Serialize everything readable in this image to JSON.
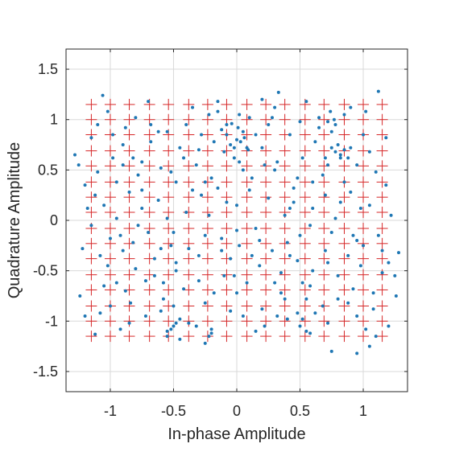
{
  "chart_data": {
    "type": "scatter",
    "title": "",
    "xlabel": "In-phase Amplitude",
    "ylabel": "Quadrature Amplitude",
    "xlim": [
      -1.35,
      1.35
    ],
    "ylim": [
      -1.7,
      1.7
    ],
    "grid": true,
    "x_ticks": [
      -1,
      -0.5,
      0,
      0.5,
      1
    ],
    "x_tick_labels": [
      "-1",
      "-0.5",
      "0",
      "0.5",
      "1"
    ],
    "y_ticks": [
      -1.5,
      -1,
      -0.5,
      0,
      0.5,
      1,
      1.5
    ],
    "y_tick_labels": [
      "-1.5",
      "-1",
      "-0.5",
      "0",
      "0.5",
      "1",
      "1.5"
    ],
    "reference_constellation": {
      "marker": "plus",
      "color": "#d62728",
      "levels": [
        -1.15,
        -1.0,
        -0.85,
        -0.69,
        -0.54,
        -0.38,
        -0.23,
        -0.08,
        0.08,
        0.23,
        0.38,
        0.54,
        0.69,
        0.85,
        1.0,
        1.15
      ]
    },
    "received_points": {
      "marker": "dot",
      "color": "#1f77b4",
      "points": [
        [
          -1.28,
          0.65
        ],
        [
          -1.25,
          0.55
        ],
        [
          -1.2,
          0.35
        ],
        [
          -1.22,
          -0.28
        ],
        [
          -1.24,
          -0.75
        ],
        [
          -1.18,
          0.12
        ],
        [
          -1.15,
          -0.05
        ],
        [
          -1.1,
          0.95
        ],
        [
          -1.06,
          1.24
        ],
        [
          -1.05,
          0.15
        ],
        [
          -1.02,
          -0.45
        ],
        [
          -1.12,
          -1.13
        ],
        [
          -1.08,
          -0.92
        ],
        [
          -0.98,
          0.62
        ],
        [
          -0.95,
          0.02
        ],
        [
          -0.9,
          -0.3
        ],
        [
          -0.95,
          -0.62
        ],
        [
          -0.92,
          -1.08
        ],
        [
          -0.88,
          0.92
        ],
        [
          -0.85,
          0.28
        ],
        [
          -0.82,
          -0.22
        ],
        [
          -0.8,
          -0.48
        ],
        [
          -0.84,
          -0.82
        ],
        [
          -0.78,
          0.45
        ],
        [
          -0.75,
          0.12
        ],
        [
          -0.72,
          -0.95
        ],
        [
          -0.7,
          1.18
        ],
        [
          -0.68,
          0.78
        ],
        [
          -0.65,
          -0.55
        ],
        [
          -0.62,
          0.2
        ],
        [
          -0.6,
          -0.28
        ],
        [
          -0.58,
          -0.78
        ],
        [
          -0.55,
          -1.1
        ],
        [
          -0.55,
          0.88
        ],
        [
          -0.52,
          0.48
        ],
        [
          -0.5,
          -0.12
        ],
        [
          -0.48,
          -0.42
        ],
        [
          -0.45,
          0.72
        ],
        [
          -0.42,
          -0.68
        ],
        [
          -0.4,
          0.08
        ],
        [
          -0.38,
          -1.02
        ],
        [
          -0.35,
          1.12
        ],
        [
          -0.32,
          0.55
        ],
        [
          -0.3,
          -0.35
        ],
        [
          -0.28,
          0.25
        ],
        [
          -0.25,
          -0.82
        ],
        [
          -0.22,
          1.05
        ],
        [
          -0.2,
          -1.08
        ],
        [
          -0.18,
          0.78
        ],
        [
          -0.15,
          0.32
        ],
        [
          -0.12,
          -0.18
        ],
        [
          -0.1,
          -0.55
        ],
        [
          -0.08,
          0.95
        ],
        [
          -0.05,
          -0.9
        ],
        [
          -0.02,
          0.62
        ],
        [
          0.0,
          0.15
        ],
        [
          0.02,
          -0.25
        ],
        [
          0.05,
          0.88
        ],
        [
          0.08,
          -0.62
        ],
        [
          0.1,
          1.02
        ],
        [
          0.12,
          0.42
        ],
        [
          0.15,
          -0.08
        ],
        [
          0.18,
          -0.45
        ],
        [
          0.2,
          0.72
        ],
        [
          0.22,
          -1.05
        ],
        [
          0.25,
          0.22
        ],
        [
          0.28,
          -0.3
        ],
        [
          0.3,
          1.12
        ],
        [
          0.32,
          0.58
        ],
        [
          0.35,
          -0.72
        ],
        [
          0.38,
          0.05
        ],
        [
          0.4,
          -0.98
        ],
        [
          0.42,
          0.85
        ],
        [
          0.45,
          0.32
        ],
        [
          0.48,
          -0.4
        ],
        [
          0.5,
          -0.15
        ],
        [
          0.52,
          0.62
        ],
        [
          0.55,
          1.18
        ],
        [
          0.58,
          -0.65
        ],
        [
          0.6,
          0.12
        ],
        [
          0.62,
          -0.92
        ],
        [
          0.65,
          0.92
        ],
        [
          0.68,
          0.45
        ],
        [
          0.7,
          -0.3
        ],
        [
          0.72,
          -1.02
        ],
        [
          0.75,
          0.72
        ],
        [
          0.78,
          0.02
        ],
        [
          0.8,
          -0.55
        ],
        [
          0.82,
          0.62
        ],
        [
          0.85,
          1.05
        ],
        [
          0.88,
          -0.82
        ],
        [
          0.9,
          0.28
        ],
        [
          0.92,
          -0.15
        ],
        [
          0.95,
          0.55
        ],
        [
          0.98,
          -0.45
        ],
        [
          1.0,
          0.85
        ],
        [
          1.02,
          -1.08
        ],
        [
          1.05,
          0.15
        ],
        [
          1.08,
          -0.72
        ],
        [
          1.1,
          0.48
        ],
        [
          1.12,
          1.28
        ],
        [
          1.15,
          -0.3
        ],
        [
          1.18,
          0.82
        ],
        [
          1.2,
          -1.05
        ],
        [
          1.22,
          0.05
        ],
        [
          1.25,
          -0.55
        ],
        [
          1.28,
          -0.32
        ],
        [
          1.26,
          -0.75
        ],
        [
          -1.1,
          0.48
        ],
        [
          -1.0,
          -0.18
        ],
        [
          -0.9,
          0.75
        ],
        [
          -0.8,
          1.02
        ],
        [
          -0.7,
          -0.12
        ],
        [
          -0.6,
          0.52
        ],
        [
          -0.5,
          -0.85
        ],
        [
          -0.4,
          0.95
        ],
        [
          -0.3,
          -0.6
        ],
        [
          -0.2,
          0.42
        ],
        [
          -0.1,
          0.68
        ],
        [
          0.0,
          -0.72
        ],
        [
          0.1,
          0.3
        ],
        [
          0.2,
          -0.88
        ],
        [
          0.3,
          0.5
        ],
        [
          0.4,
          -0.22
        ],
        [
          0.5,
          0.98
        ],
        [
          0.6,
          -0.5
        ],
        [
          0.7,
          0.25
        ],
        [
          0.8,
          -0.78
        ],
        [
          0.9,
          1.12
        ],
        [
          1.0,
          -0.25
        ],
        [
          -1.15,
          0.82
        ],
        [
          -1.05,
          -0.65
        ],
        [
          -0.95,
          0.38
        ],
        [
          -0.85,
          -1.02
        ],
        [
          -0.75,
          0.58
        ],
        [
          -0.65,
          -0.38
        ],
        [
          -0.55,
          0.02
        ],
        [
          -0.45,
          -0.98
        ],
        [
          -0.35,
          0.3
        ],
        [
          -0.25,
          -0.15
        ],
        [
          -0.15,
          1.08
        ],
        [
          -0.05,
          -0.38
        ],
        [
          0.05,
          0.5
        ],
        [
          0.15,
          -1.1
        ],
        [
          0.25,
          0.95
        ],
        [
          0.35,
          -0.52
        ],
        [
          0.45,
          0.18
        ],
        [
          0.55,
          -0.78
        ],
        [
          0.65,
          1.02
        ],
        [
          0.75,
          -0.12
        ],
        [
          0.85,
          0.38
        ],
        [
          0.95,
          -0.95
        ],
        [
          1.05,
          0.68
        ],
        [
          1.15,
          -0.52
        ],
        [
          -1.08,
          -0.35
        ],
        [
          -0.98,
          0.85
        ],
        [
          -0.88,
          -0.7
        ],
        [
          -0.78,
          -0.05
        ],
        [
          -0.68,
          0.95
        ],
        [
          -0.58,
          -0.62
        ],
        [
          -0.48,
          0.38
        ],
        [
          -0.38,
          -0.28
        ],
        [
          -0.28,
          0.85
        ],
        [
          -0.18,
          -0.72
        ],
        [
          -0.08,
          0.18
        ],
        [
          0.02,
          1.05
        ],
        [
          0.12,
          -0.35
        ],
        [
          0.22,
          0.55
        ],
        [
          0.32,
          -0.95
        ],
        [
          0.42,
          0.12
        ],
        [
          0.52,
          -0.62
        ],
        [
          0.62,
          0.78
        ],
        [
          0.72,
          -0.42
        ],
        [
          0.82,
          0.18
        ],
        [
          0.92,
          -0.68
        ],
        [
          1.02,
          1.08
        ],
        [
          1.12,
          -0.15
        ],
        [
          -1.2,
          -0.95
        ],
        [
          -1.12,
          0.25
        ],
        [
          -1.02,
          1.08
        ],
        [
          -0.92,
          -0.15
        ],
        [
          -0.82,
          0.62
        ],
        [
          -0.72,
          -0.6
        ],
        [
          -0.62,
          0.88
        ],
        [
          -0.52,
          -0.25
        ],
        [
          -0.42,
          0.62
        ],
        [
          -0.32,
          -1.05
        ],
        [
          -0.22,
          0.05
        ],
        [
          -0.12,
          0.9
        ],
        [
          -0.02,
          -0.55
        ],
        [
          0.08,
          0.72
        ],
        [
          0.18,
          -0.2
        ],
        [
          0.28,
          1.02
        ],
        [
          0.38,
          -0.78
        ],
        [
          0.48,
          0.42
        ],
        [
          0.58,
          -0.05
        ],
        [
          0.68,
          -0.85
        ],
        [
          0.78,
          0.95
        ],
        [
          0.88,
          -0.35
        ],
        [
          0.98,
          0.12
        ],
        [
          1.08,
          -0.88
        ],
        [
          1.18,
          0.35
        ],
        [
          -0.9,
          0.55
        ],
        [
          -0.6,
          -0.9
        ],
        [
          -0.3,
          0.7
        ],
        [
          0.0,
          -0.1
        ],
        [
          0.3,
          -0.62
        ],
        [
          0.6,
          0.38
        ],
        [
          0.9,
          0.72
        ],
        [
          1.2,
          -0.42
        ],
        [
          -0.25,
          0.38
        ],
        [
          -0.12,
          -0.3
        ],
        [
          0.15,
          0.85
        ],
        [
          0.42,
          -0.35
        ],
        [
          0.72,
          0.55
        ],
        [
          0.95,
          -0.2
        ],
        [
          -0.48,
          -0.5
        ],
        [
          -0.75,
          0.3
        ],
        [
          -1.0,
          -0.85
        ],
        [
          0.05,
          -0.95
        ],
        [
          0.7,
          0.62
        ],
        [
          0.75,
          0.88
        ],
        [
          0.8,
          0.75
        ],
        [
          0.78,
          0.68
        ],
        [
          0.82,
          0.65
        ],
        [
          0.85,
          0.7
        ],
        [
          0.88,
          0.62
        ],
        [
          0.72,
          0.98
        ],
        [
          0.77,
          1.0
        ],
        [
          0.74,
          1.08
        ],
        [
          0.0,
          0.8
        ],
        [
          -0.05,
          0.75
        ],
        [
          -0.02,
          0.72
        ],
        [
          0.03,
          0.78
        ],
        [
          0.06,
          0.82
        ],
        [
          -0.08,
          0.85
        ],
        [
          0.09,
          0.7
        ],
        [
          0.01,
          0.92
        ],
        [
          -0.04,
          0.96
        ],
        [
          0.02,
          0.58
        ],
        [
          0.5,
          -1.05
        ],
        [
          0.52,
          -0.98
        ],
        [
          0.55,
          -1.1
        ],
        [
          0.58,
          -1.12
        ],
        [
          0.48,
          -0.92
        ],
        [
          -0.55,
          -1.15
        ],
        [
          -0.52,
          -1.08
        ],
        [
          -0.5,
          -1.05
        ],
        [
          -0.48,
          -1.02
        ],
        [
          -0.45,
          -1.18
        ],
        [
          -0.25,
          -1.22
        ],
        [
          -0.22,
          -1.15
        ],
        [
          -0.2,
          -1.12
        ],
        [
          0.75,
          -1.3
        ],
        [
          0.95,
          -1.32
        ],
        [
          1.05,
          -1.25
        ],
        [
          1.1,
          -1.15
        ],
        [
          0.33,
          1.27
        ],
        [
          0.2,
          1.2
        ],
        [
          -0.15,
          1.18
        ]
      ]
    }
  }
}
